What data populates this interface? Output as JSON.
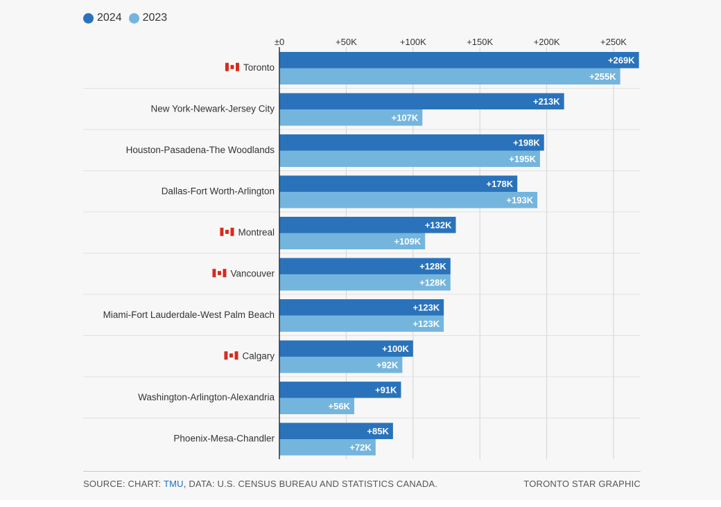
{
  "legend": {
    "items": [
      {
        "label": "2024",
        "color": "#2a73bb"
      },
      {
        "label": "2023",
        "color": "#74b5de"
      }
    ]
  },
  "chart_data": {
    "type": "bar",
    "orientation": "horizontal",
    "categories": [
      "Toronto",
      "New York-Newark-Jersey City",
      "Houston-Pasadena-The Woodlands",
      "Dallas-Fort Worth-Arlington",
      "Montreal",
      "Vancouver",
      "Miami-Fort Lauderdale-West Palm Beach",
      "Calgary",
      "Washington-Arlington-Alexandria",
      "Phoenix-Mesa-Chandler"
    ],
    "canadian": [
      true,
      false,
      false,
      false,
      true,
      true,
      false,
      true,
      false,
      false
    ],
    "series": [
      {
        "name": "2024",
        "color": "#2a73bb",
        "values": [
          269,
          213,
          198,
          178,
          132,
          128,
          123,
          100,
          91,
          85
        ],
        "labels": [
          "+269K",
          "+213K",
          "+198K",
          "+178K",
          "+132K",
          "+128K",
          "+123K",
          "+100K",
          "+91K",
          "+85K"
        ]
      },
      {
        "name": "2023",
        "color": "#74b5de",
        "values": [
          255,
          107,
          195,
          193,
          109,
          128,
          123,
          92,
          56,
          72
        ],
        "labels": [
          "+255K",
          "+107K",
          "+195K",
          "+193K",
          "+109K",
          "+128K",
          "+123K",
          "+92K",
          "+56K",
          "+72K"
        ]
      }
    ],
    "value_unit": "thousands",
    "xticks": [
      0,
      50,
      100,
      150,
      200,
      250
    ],
    "xtick_labels": [
      "±0",
      "+50K",
      "+100K",
      "+150K",
      "+200K",
      "+250K"
    ],
    "xlim": [
      0,
      270
    ],
    "grid": true,
    "legend_position": "top-left"
  },
  "footer": {
    "source_prefix": "SOURCE: CHART: ",
    "source_link": "TMU",
    "source_suffix": ", DATA: U.S. CENSUS BUREAU AND STATISTICS CANADA.",
    "credit": "TORONTO STAR GRAPHIC"
  }
}
